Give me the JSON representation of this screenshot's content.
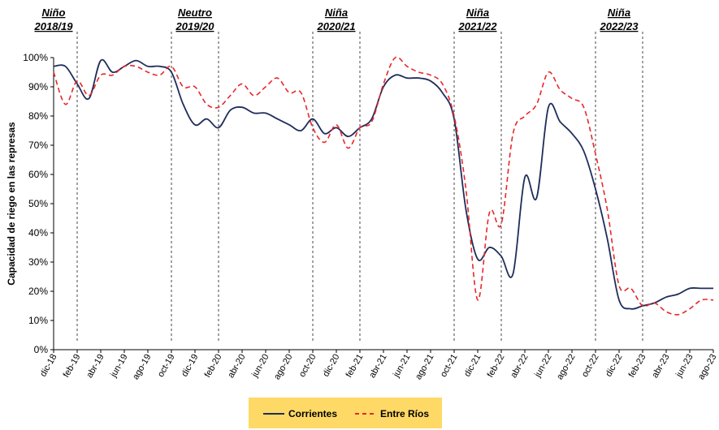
{
  "chart_data": {
    "type": "line",
    "ylabel": "Capacidad de riego en las represas",
    "xlabel": "",
    "ylim": [
      0,
      100
    ],
    "y_ticks": [
      "0%",
      "10%",
      "20%",
      "30%",
      "40%",
      "50%",
      "60%",
      "70%",
      "80%",
      "90%",
      "100%"
    ],
    "x_tick_labels": [
      "dic-18",
      "feb-19",
      "abr-19",
      "jun-19",
      "ago-19",
      "oct-19",
      "dic-19",
      "feb-20",
      "abr-20",
      "jun-20",
      "ago-20",
      "oct-20",
      "dic-20",
      "feb-21",
      "abr-21",
      "jun-21",
      "ago-21",
      "oct-21",
      "dic-21",
      "feb-22",
      "abr-22",
      "jun-22",
      "ago-22",
      "oct-22",
      "dic-22",
      "feb-23",
      "abr-23",
      "jun-23",
      "ago-23"
    ],
    "x_start": "2018-12",
    "x_end": "2023-08",
    "phases": [
      {
        "label_top": "Niño",
        "label_bottom": "2018/19"
      },
      {
        "label_top": "Neutro",
        "label_bottom": "2019/20"
      },
      {
        "label_top": "Niña",
        "label_bottom": "2020/21"
      },
      {
        "label_top": "Niña",
        "label_bottom": "2021/22"
      },
      {
        "label_top": "Niña",
        "label_bottom": "2022/23"
      }
    ],
    "phase_lines": [
      "2019-02",
      "2019-10",
      "2020-02",
      "2020-10",
      "2021-02",
      "2021-10",
      "2022-02",
      "2022-10",
      "2023-02"
    ],
    "grid": false,
    "legend_position": "bottom",
    "series": [
      {
        "name": "Corrientes",
        "color": "#1f2d5a",
        "style": "solid",
        "x": [
          "2018-12",
          "2019-01",
          "2019-02",
          "2019-03",
          "2019-04",
          "2019-05",
          "2019-06",
          "2019-07",
          "2019-08",
          "2019-09",
          "2019-10",
          "2019-11",
          "2019-12",
          "2020-01",
          "2020-02",
          "2020-03",
          "2020-04",
          "2020-05",
          "2020-06",
          "2020-07",
          "2020-08",
          "2020-09",
          "2020-10",
          "2020-11",
          "2020-12",
          "2021-01",
          "2021-02",
          "2021-03",
          "2021-04",
          "2021-05",
          "2021-06",
          "2021-07",
          "2021-08",
          "2021-09",
          "2021-10",
          "2021-11",
          "2021-12",
          "2022-01",
          "2022-02",
          "2022-03",
          "2022-04",
          "2022-05",
          "2022-06",
          "2022-07",
          "2022-08",
          "2022-09",
          "2022-10",
          "2022-11",
          "2022-12",
          "2023-01",
          "2023-02",
          "2023-03",
          "2023-04",
          "2023-05",
          "2023-06",
          "2023-07",
          "2023-08"
        ],
        "values": [
          97,
          97,
          91,
          86,
          99,
          95,
          97,
          99,
          97,
          97,
          95,
          84,
          77,
          79,
          76,
          82,
          83,
          81,
          81,
          79,
          77,
          75,
          79,
          74,
          76,
          73,
          76,
          79,
          90,
          94,
          93,
          93,
          92,
          88,
          79,
          48,
          31,
          35,
          32,
          26,
          59,
          52,
          83,
          78,
          74,
          68,
          55,
          38,
          17,
          14,
          15,
          16,
          18,
          19,
          21,
          21,
          21
        ]
      },
      {
        "name": "Entre Ríos",
        "color": "#e8262a",
        "style": "dashed",
        "x": [
          "2018-12",
          "2019-01",
          "2019-02",
          "2019-03",
          "2019-04",
          "2019-05",
          "2019-06",
          "2019-07",
          "2019-08",
          "2019-09",
          "2019-10",
          "2019-11",
          "2019-12",
          "2020-01",
          "2020-02",
          "2020-03",
          "2020-04",
          "2020-05",
          "2020-06",
          "2020-07",
          "2020-08",
          "2020-09",
          "2020-10",
          "2020-11",
          "2020-12",
          "2021-01",
          "2021-02",
          "2021-03",
          "2021-04",
          "2021-05",
          "2021-06",
          "2021-07",
          "2021-08",
          "2021-09",
          "2021-10",
          "2021-11",
          "2021-12",
          "2022-01",
          "2022-02",
          "2022-03",
          "2022-04",
          "2022-05",
          "2022-06",
          "2022-07",
          "2022-08",
          "2022-09",
          "2022-10",
          "2022-11",
          "2022-12",
          "2023-01",
          "2023-02",
          "2023-03",
          "2023-04",
          "2023-05",
          "2023-06",
          "2023-07",
          "2023-08"
        ],
        "values": [
          95,
          84,
          92,
          87,
          94,
          94,
          97,
          97,
          95,
          94,
          97,
          90,
          90,
          84,
          83,
          87,
          91,
          87,
          90,
          93,
          88,
          88,
          76,
          71,
          77,
          69,
          76,
          78,
          91,
          100,
          97,
          95,
          94,
          91,
          80,
          55,
          17,
          47,
          43,
          74,
          80,
          84,
          95,
          89,
          86,
          83,
          67,
          48,
          22,
          21,
          15,
          16,
          13,
          12,
          14,
          17,
          17
        ]
      }
    ]
  }
}
